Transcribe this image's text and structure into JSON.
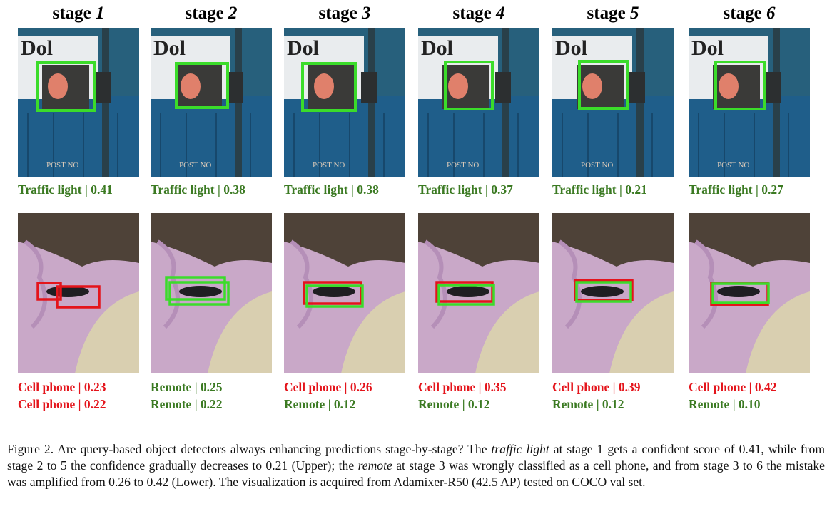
{
  "columns": [
    {
      "stage": "stage",
      "number": "1",
      "top": [
        {
          "text": "Traffic light | 0.41",
          "color": "#3b7a22"
        }
      ],
      "bottom": [
        {
          "text": "Cell phone | 0.23",
          "color": "#e4141b"
        },
        {
          "text": "Cell phone | 0.22",
          "color": "#e4141b"
        }
      ]
    },
    {
      "stage": "stage",
      "number": "2",
      "top": [
        {
          "text": "Traffic light | 0.38",
          "color": "#3b7a22"
        }
      ],
      "bottom": [
        {
          "text": "Remote | 0.25",
          "color": "#3b7a22"
        },
        {
          "text": "Remote | 0.22",
          "color": "#3b7a22"
        }
      ]
    },
    {
      "stage": "stage",
      "number": "3",
      "top": [
        {
          "text": "Traffic light | 0.38",
          "color": "#3b7a22"
        }
      ],
      "bottom": [
        {
          "text": "Cell phone | 0.26",
          "color": "#e4141b"
        },
        {
          "text": "Remote | 0.12",
          "color": "#3b7a22"
        }
      ]
    },
    {
      "stage": "stage",
      "number": "4",
      "top": [
        {
          "text": "Traffic light | 0.37",
          "color": "#3b7a22"
        }
      ],
      "bottom": [
        {
          "text": "Cell phone | 0.35",
          "color": "#e4141b"
        },
        {
          "text": "Remote | 0.12",
          "color": "#3b7a22"
        }
      ]
    },
    {
      "stage": "stage",
      "number": "5",
      "top": [
        {
          "text": "Traffic light | 0.21",
          "color": "#3b7a22"
        }
      ],
      "bottom": [
        {
          "text": "Cell phone | 0.39",
          "color": "#e4141b"
        },
        {
          "text": "Remote | 0.12",
          "color": "#3b7a22"
        }
      ]
    },
    {
      "stage": "stage",
      "number": "6",
      "top": [
        {
          "text": "Traffic light | 0.27",
          "color": "#3b7a22"
        }
      ],
      "bottom": [
        {
          "text": "Cell phone | 0.42",
          "color": "#e4141b"
        },
        {
          "text": "Remote | 0.10",
          "color": "#3b7a22"
        }
      ]
    }
  ],
  "caption": [
    {
      "text": "Figure 2. Are query-based object detectors always enhancing predictions stage-by-stage? The ",
      "italic": false
    },
    {
      "text": "traffic light",
      "italic": true
    },
    {
      "text": " at stage 1 gets a confident score of 0.41, while from stage 2 to 5 the confidence gradually decreases to 0.21 (Upper); the ",
      "italic": false
    },
    {
      "text": "remote",
      "italic": true
    },
    {
      "text": " at stage 3 was wrongly classified as a cell phone, and from stage 3 to 6 the mistake was amplified from 0.26 to 0.42 (Lower). The visualization is acquired from Adamixer-R50 (42.5 AP) tested on COCO val set.",
      "italic": false
    }
  ]
}
